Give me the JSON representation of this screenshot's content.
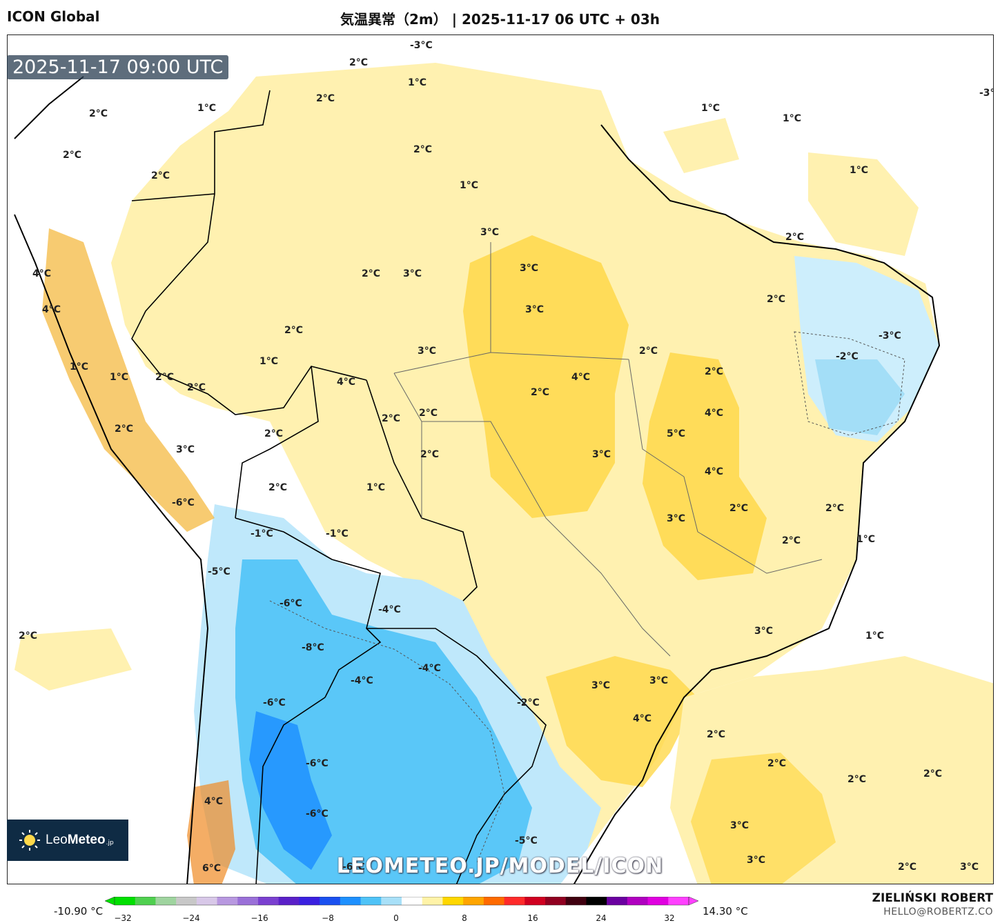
{
  "header": {
    "model": "ICON Global",
    "title": "気温異常（2m） | 2025-11-17 06 UTC + 03h"
  },
  "map": {
    "valid_time": "2025-11-17 09:00 UTC",
    "watermark": "LEOMETEO.JP/MODEL/ICON",
    "labels": [
      {
        "text": "2°C"
      },
      {
        "text": "-3°C"
      },
      {
        "text": "1°C"
      },
      {
        "text": "1°C"
      },
      {
        "text": "-3°C"
      },
      {
        "text": "2°C"
      },
      {
        "text": "1°C"
      },
      {
        "text": "1°C"
      },
      {
        "text": "1°C"
      },
      {
        "text": "2°C"
      },
      {
        "text": "2°C"
      },
      {
        "text": "2°C"
      },
      {
        "text": "1°C"
      },
      {
        "text": "2°C"
      },
      {
        "text": "3°C"
      },
      {
        "text": "2°C"
      },
      {
        "text": "2°C"
      },
      {
        "text": "3°C"
      },
      {
        "text": "3°C"
      },
      {
        "text": "4°C"
      },
      {
        "text": "2°C"
      },
      {
        "text": "3°C"
      },
      {
        "text": "4°C"
      },
      {
        "text": "-3°C"
      },
      {
        "text": "-2°C"
      },
      {
        "text": "2°C"
      },
      {
        "text": "2°C"
      },
      {
        "text": "1°C"
      },
      {
        "text": "1°C"
      },
      {
        "text": "1°C"
      },
      {
        "text": "2°C"
      },
      {
        "text": "2°C"
      },
      {
        "text": "3°C"
      },
      {
        "text": "2°C"
      },
      {
        "text": "4°C"
      },
      {
        "text": "4°C"
      },
      {
        "text": "2°C"
      },
      {
        "text": "2°C"
      },
      {
        "text": "2°C"
      },
      {
        "text": "4°C"
      },
      {
        "text": "2°C"
      },
      {
        "text": "5°C"
      },
      {
        "text": "3°C"
      },
      {
        "text": "4°C"
      },
      {
        "text": "2°C"
      },
      {
        "text": "1°C"
      },
      {
        "text": "2°C"
      },
      {
        "text": "-6°C"
      },
      {
        "text": "3°C"
      },
      {
        "text": "3°C"
      },
      {
        "text": "2°C"
      },
      {
        "text": "1°C"
      },
      {
        "text": "-1°C"
      },
      {
        "text": "-1°C"
      },
      {
        "text": "2°C"
      },
      {
        "text": "2°C"
      },
      {
        "text": "-5°C"
      },
      {
        "text": "-6°C"
      },
      {
        "text": "-4°C"
      },
      {
        "text": "2°C"
      },
      {
        "text": "3°C"
      },
      {
        "text": "2°C"
      },
      {
        "text": "1°C"
      },
      {
        "text": "-8°C"
      },
      {
        "text": "-4°C"
      },
      {
        "text": "-4°C"
      },
      {
        "text": "3°C"
      },
      {
        "text": "3°C"
      },
      {
        "text": "-6°C"
      },
      {
        "text": "-2°C"
      },
      {
        "text": "4°C"
      },
      {
        "text": "2°C"
      },
      {
        "text": "-6°C"
      },
      {
        "text": "2°C"
      },
      {
        "text": "2°C"
      },
      {
        "text": "2°C"
      },
      {
        "text": "4°C"
      },
      {
        "text": "-6°C"
      },
      {
        "text": "3°C"
      },
      {
        "text": "-5°C"
      },
      {
        "text": "3°C"
      },
      {
        "text": "-6°C"
      },
      {
        "text": "6°C"
      },
      {
        "text": "2°C"
      },
      {
        "text": "3°C"
      }
    ]
  },
  "logo": {
    "brand_light": "Leo",
    "brand_bold": "Meteo",
    "suffix": ".jp"
  },
  "colorbar": {
    "min_label": "-10.90 °C",
    "max_label": "14.30 °C",
    "ticks": [
      "−32",
      "−24",
      "−16",
      "−8",
      "0",
      "8",
      "16",
      "24",
      "32"
    ],
    "range": [
      -32,
      32
    ],
    "colors": [
      "#00e000",
      "#4fd04f",
      "#9fd49f",
      "#c8c8c8",
      "#d8c8e8",
      "#b898e0",
      "#9a70d8",
      "#7a40d0",
      "#5a20c8",
      "#3a20e0",
      "#1a50f0",
      "#1e90ff",
      "#4fc3f7",
      "#a8e0f8",
      "#ffffff",
      "#fff3a8",
      "#ffd700",
      "#ffa500",
      "#ff6a00",
      "#ff2a2a",
      "#d00020",
      "#900020",
      "#400010",
      "#000000",
      "#6a00a0",
      "#b000c0",
      "#e000e0",
      "#ff40ff"
    ]
  },
  "footer": {
    "author": "ZIELIŃSKI ROBERT",
    "email": "HELLO@ROBERTZ.CO"
  }
}
